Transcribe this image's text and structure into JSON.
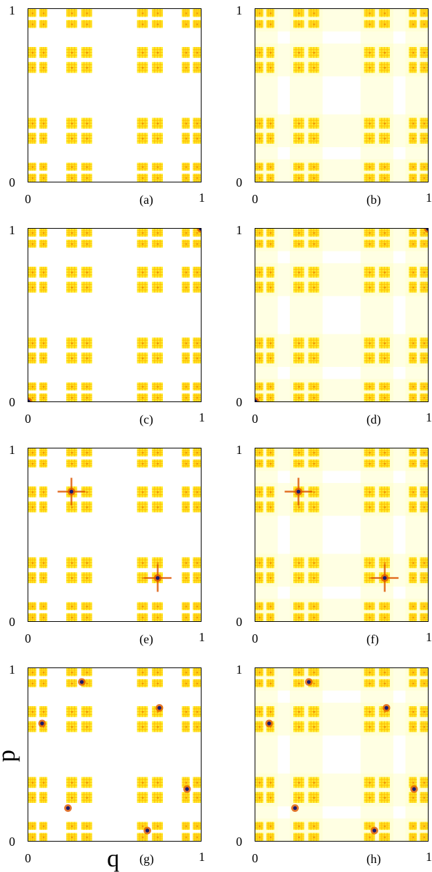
{
  "chart_data": [
    {
      "type": "heatmap",
      "panel_label": "(a)",
      "x_tick_min": "0",
      "x_tick_max": "1",
      "y_tick_min": "0",
      "y_tick_max": "1",
      "xlim": [
        0,
        1
      ],
      "ylim": [
        0,
        1
      ],
      "variant": "sparse",
      "hotspots": []
    },
    {
      "type": "heatmap",
      "panel_label": "(b)",
      "x_tick_min": "0",
      "x_tick_max": "1",
      "y_tick_min": "0",
      "y_tick_max": "1",
      "xlim": [
        0,
        1
      ],
      "ylim": [
        0,
        1
      ],
      "variant": "halo",
      "hotspots": []
    },
    {
      "type": "heatmap",
      "panel_label": "(c)",
      "x_tick_min": "0",
      "x_tick_max": "1",
      "y_tick_min": "0",
      "y_tick_max": "1",
      "xlim": [
        0,
        1
      ],
      "ylim": [
        0,
        1
      ],
      "variant": "sparse",
      "hotspots": [
        {
          "q": 1.0,
          "p": 1.0,
          "cross": false
        },
        {
          "q": 0.0,
          "p": 0.0,
          "cross": false
        }
      ]
    },
    {
      "type": "heatmap",
      "panel_label": "(d)",
      "x_tick_min": "0",
      "x_tick_max": "1",
      "y_tick_min": "0",
      "y_tick_max": "1",
      "xlim": [
        0,
        1
      ],
      "ylim": [
        0,
        1
      ],
      "variant": "halo",
      "hotspots": [
        {
          "q": 1.0,
          "p": 1.0,
          "cross": false
        },
        {
          "q": 0.0,
          "p": 0.0,
          "cross": false
        }
      ]
    },
    {
      "type": "heatmap",
      "panel_label": "(e)",
      "x_tick_min": "0",
      "x_tick_max": "1",
      "y_tick_min": "0",
      "y_tick_max": "1",
      "xlim": [
        0,
        1
      ],
      "ylim": [
        0,
        1
      ],
      "variant": "sparse",
      "hotspots": [
        {
          "q": 0.25,
          "p": 0.75,
          "cross": true
        },
        {
          "q": 0.75,
          "p": 0.25,
          "cross": true
        }
      ]
    },
    {
      "type": "heatmap",
      "panel_label": "(f)",
      "x_tick_min": "0",
      "x_tick_max": "1",
      "y_tick_min": "0",
      "y_tick_max": "1",
      "xlim": [
        0,
        1
      ],
      "ylim": [
        0,
        1
      ],
      "variant": "halo",
      "hotspots": [
        {
          "q": 0.25,
          "p": 0.75,
          "cross": true
        },
        {
          "q": 0.75,
          "p": 0.25,
          "cross": true
        }
      ]
    },
    {
      "type": "heatmap",
      "panel_label": "(g)",
      "x_tick_min": "0",
      "x_tick_max": "1",
      "y_tick_min": "0",
      "y_tick_max": "1",
      "xlim": [
        0,
        1
      ],
      "ylim": [
        0,
        1
      ],
      "variant": "sparse",
      "xlabel": "q",
      "ylabel": "p",
      "hotspots": [
        {
          "q": 0.08,
          "p": 0.68,
          "cross": false
        },
        {
          "q": 0.31,
          "p": 0.92,
          "cross": false
        },
        {
          "q": 0.23,
          "p": 0.19,
          "cross": false
        },
        {
          "q": 0.69,
          "p": 0.06,
          "cross": false
        },
        {
          "q": 0.76,
          "p": 0.77,
          "cross": false
        },
        {
          "q": 0.92,
          "p": 0.3,
          "cross": false
        }
      ]
    },
    {
      "type": "heatmap",
      "panel_label": "(h)",
      "x_tick_min": "0",
      "x_tick_max": "1",
      "y_tick_min": "0",
      "y_tick_max": "1",
      "xlim": [
        0,
        1
      ],
      "ylim": [
        0,
        1
      ],
      "variant": "halo",
      "hotspots": [
        {
          "q": 0.08,
          "p": 0.68,
          "cross": false
        },
        {
          "q": 0.31,
          "p": 0.92,
          "cross": false
        },
        {
          "q": 0.23,
          "p": 0.19,
          "cross": false
        },
        {
          "q": 0.69,
          "p": 0.06,
          "cross": false
        },
        {
          "q": 0.76,
          "p": 0.77,
          "cross": false
        },
        {
          "q": 0.92,
          "p": 0.3,
          "cross": false
        }
      ]
    }
  ],
  "colors": {
    "light": "#ffffcc",
    "mid": "#ffee33",
    "high": "#ffbb00",
    "hot": "#dd5500",
    "peak": "#1a1a6e"
  }
}
